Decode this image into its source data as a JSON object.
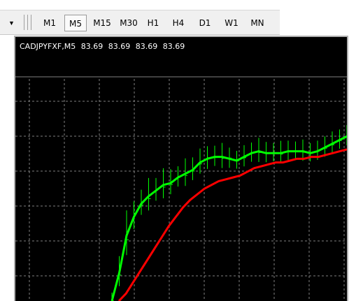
{
  "toolbar": {
    "dropdown_icon": "chevron-down-icon",
    "timeframes": [
      {
        "label": "M1",
        "active": false
      },
      {
        "label": "M5",
        "active": true
      },
      {
        "label": "M15",
        "active": false
      },
      {
        "label": "M30",
        "active": false
      },
      {
        "label": "H1",
        "active": false
      },
      {
        "label": "H4",
        "active": false
      },
      {
        "label": "D1",
        "active": false
      },
      {
        "label": "W1",
        "active": false
      },
      {
        "label": "MN",
        "active": false
      }
    ]
  },
  "chart": {
    "symbol_label": "CADJPYFXF,M5",
    "ohlc": [
      "83.69",
      "83.69",
      "83.69",
      "83.69"
    ],
    "colors": {
      "background": "#000000",
      "grid": "#7f7f7f",
      "bars": "#00ff00",
      "fast_ma": "#00ff00",
      "slow_ma": "#ff0000"
    }
  },
  "chart_data": {
    "type": "line",
    "title": "CADJPYFXF,M5",
    "grid": true,
    "series": [
      {
        "values": [
          0.0,
          0.15,
          0.35,
          0.45,
          0.52,
          0.56,
          0.59,
          0.62,
          0.63,
          0.66,
          0.68,
          0.7,
          0.74,
          0.76,
          0.77,
          0.77,
          0.76,
          0.75,
          0.77,
          0.79,
          0.8,
          0.79,
          0.79,
          0.79,
          0.8,
          0.8,
          0.8,
          0.79,
          0.8,
          0.82,
          0.84,
          0.86,
          0.88
        ]
      },
      {
        "values": [
          0.0,
          0.04,
          0.1,
          0.16,
          0.22,
          0.28,
          0.34,
          0.4,
          0.45,
          0.5,
          0.54,
          0.57,
          0.6,
          0.62,
          0.64,
          0.65,
          0.66,
          0.67,
          0.69,
          0.71,
          0.72,
          0.73,
          0.74,
          0.74,
          0.75,
          0.76,
          0.76,
          0.77,
          0.77,
          0.78,
          0.79,
          0.8,
          0.81
        ]
      }
    ]
  }
}
